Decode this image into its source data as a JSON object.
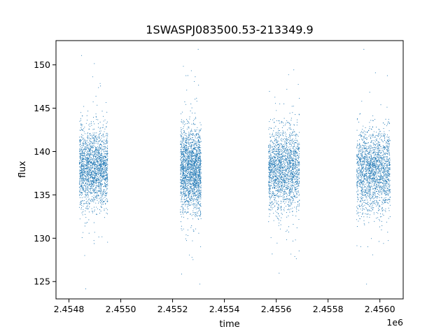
{
  "chart_data": {
    "type": "scatter",
    "title": "1SWASPJ083500.53-213349.9",
    "xlabel": "time",
    "ylabel": "flux",
    "x_offset_label": "1e6",
    "xlim": [
      2.45475,
      2.45609
    ],
    "ylim": [
      123.0,
      152.8
    ],
    "x_ticks": [
      2.4548,
      2.455,
      2.4552,
      2.4554,
      2.4556,
      2.4558,
      2.456
    ],
    "x_tick_labels": [
      "2.4548",
      "2.4550",
      "2.4552",
      "2.4554",
      "2.4556",
      "2.4558",
      "2.4560"
    ],
    "y_ticks": [
      125,
      130,
      135,
      140,
      145,
      150
    ],
    "y_tick_labels": [
      "125",
      "130",
      "135",
      "140",
      "145",
      "150"
    ],
    "grid": false,
    "point_color": "#1f77b4",
    "seasons": [
      {
        "x_start": 2.45484,
        "x_end": 2.45495,
        "y_center": 138.0,
        "y_spread": 2.2
      },
      {
        "x_start": 2.45523,
        "x_end": 2.45531,
        "y_center": 137.8,
        "y_spread": 2.4
      },
      {
        "x_start": 2.45557,
        "x_end": 2.45569,
        "y_center": 137.9,
        "y_spread": 2.3
      },
      {
        "x_start": 2.45591,
        "x_end": 2.45604,
        "y_center": 137.8,
        "y_spread": 2.3
      }
    ]
  }
}
